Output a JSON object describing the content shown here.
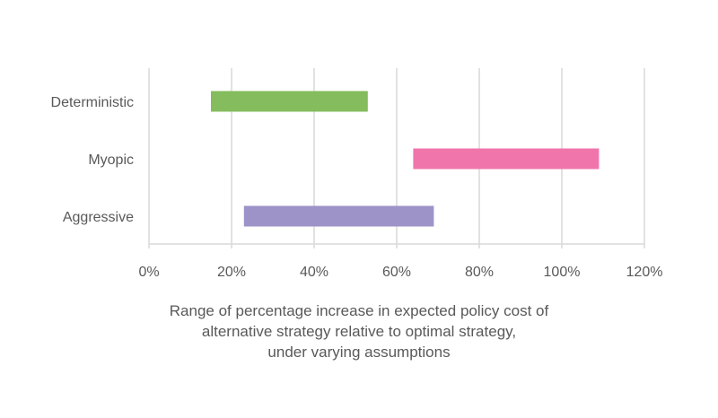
{
  "chart_data": {
    "type": "bar",
    "orientation": "horizontal-range",
    "categories": [
      "Deterministic",
      "Myopic",
      "Aggressive"
    ],
    "ranges": [
      {
        "category": "Deterministic",
        "low": 15,
        "high": 53,
        "color": "#84BC5E"
      },
      {
        "category": "Myopic",
        "low": 64,
        "high": 109,
        "color": "#F075AB"
      },
      {
        "category": "Aggressive",
        "low": 23,
        "high": 69,
        "color": "#9E93C8"
      }
    ],
    "x_ticks": [
      "0%",
      "20%",
      "40%",
      "60%",
      "80%",
      "100%",
      "120%"
    ],
    "xlim": [
      0,
      120
    ],
    "x_unit": "percent",
    "grid": "vertical",
    "title": "",
    "xlabel_lines": [
      "Range of percentage increase in expected policy cost of",
      "alternative strategy relative to optimal strategy,",
      "under varying assumptions"
    ],
    "ylabel": ""
  }
}
